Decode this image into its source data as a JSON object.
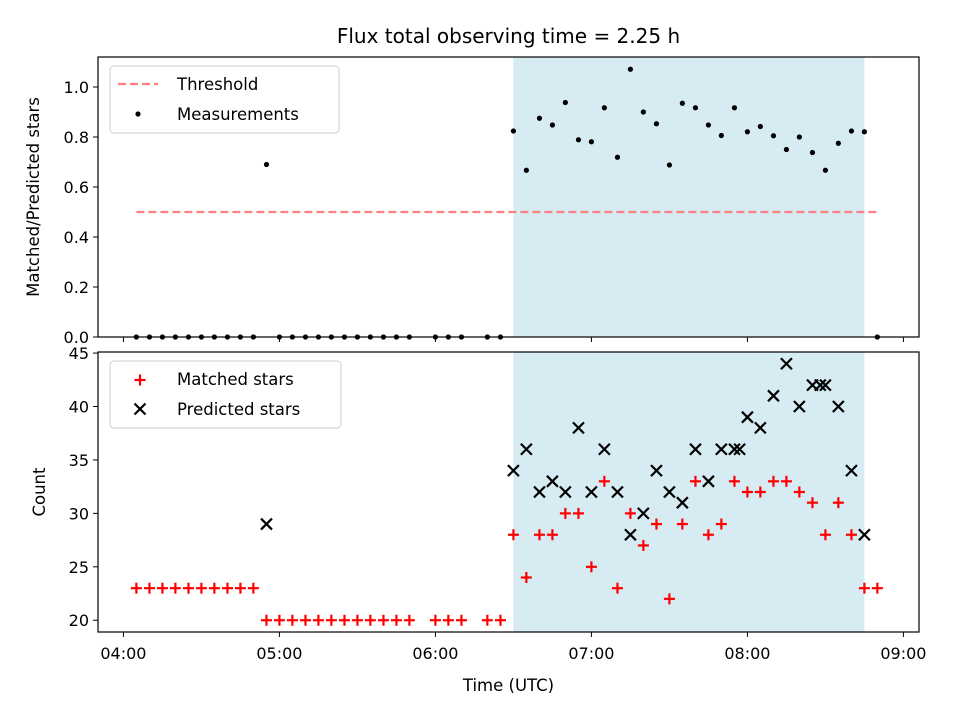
{
  "figure": {
    "title": "Flux total observing time = 2.25 h",
    "xlabel": "Time (UTC)",
    "x_ticks": [
      "04:00",
      "05:00",
      "06:00",
      "07:00",
      "08:00",
      "09:00"
    ],
    "x_tick_values_hours": [
      4,
      5,
      6,
      7,
      8,
      9
    ],
    "xlim_hours": [
      3.837,
      9.1
    ],
    "shaded_span_hours": [
      6.5,
      8.75
    ],
    "shade_color": "#add8e6"
  },
  "chart_data": [
    {
      "type": "scatter",
      "panel": "top",
      "ylabel": "Matched/Predicted stars",
      "ylim": [
        0,
        1.12
      ],
      "y_ticks": [
        0.0,
        0.2,
        0.4,
        0.6,
        0.8,
        1.0
      ],
      "y_tick_labels": [
        "0.0",
        "0.2",
        "0.4",
        "0.6",
        "0.8",
        "1.0"
      ],
      "legend_position": "upper-left",
      "threshold": {
        "name": "Threshold",
        "value": 0.5,
        "x_range_hours": [
          4.083,
          8.833
        ],
        "color": "#ff8080"
      },
      "series": [
        {
          "name": "Measurements",
          "color": "#000000",
          "x_hours": [
            4.083,
            4.167,
            4.25,
            4.333,
            4.417,
            4.5,
            4.583,
            4.667,
            4.75,
            4.833,
            4.917,
            5.0,
            5.083,
            5.167,
            5.25,
            5.333,
            5.417,
            5.5,
            5.583,
            5.667,
            5.75,
            5.833,
            6.0,
            6.083,
            6.167,
            6.333,
            6.417,
            6.5,
            6.583,
            6.667,
            6.75,
            6.833,
            6.917,
            7.0,
            7.083,
            7.167,
            7.25,
            7.333,
            7.417,
            7.5,
            7.583,
            7.667,
            7.75,
            7.833,
            7.917,
            8.0,
            8.083,
            8.167,
            8.25,
            8.333,
            8.417,
            8.5,
            8.583,
            8.667,
            8.75,
            8.833
          ],
          "y": [
            0,
            0,
            0,
            0,
            0,
            0,
            0,
            0,
            0,
            0,
            0.69,
            0,
            0,
            0,
            0,
            0,
            0,
            0,
            0,
            0,
            0,
            0,
            0,
            0,
            0,
            0,
            0,
            0.824,
            0.667,
            0.875,
            0.848,
            0.938,
            0.789,
            0.781,
            0.917,
            0.719,
            1.071,
            0.9,
            0.853,
            0.688,
            0.935,
            0.917,
            0.848,
            0.806,
            0.917,
            0.821,
            0.842,
            0.805,
            0.75,
            0.8,
            0.738,
            0.667,
            0.775,
            0.824,
            0.821,
            0
          ]
        }
      ]
    },
    {
      "type": "scatter",
      "panel": "bottom",
      "ylabel": "Count",
      "ylim": [
        18.9,
        45.1
      ],
      "y_ticks": [
        20,
        25,
        30,
        35,
        40,
        45
      ],
      "y_tick_labels": [
        "20",
        "25",
        "30",
        "35",
        "40",
        "45"
      ],
      "legend_position": "upper-left",
      "series": [
        {
          "name": "Matched stars",
          "marker": "plus",
          "color": "#ff0000",
          "x_hours": [
            4.083,
            4.167,
            4.25,
            4.333,
            4.417,
            4.5,
            4.583,
            4.667,
            4.75,
            4.833,
            4.917,
            5.0,
            5.083,
            5.167,
            5.25,
            5.333,
            5.417,
            5.5,
            5.583,
            5.667,
            5.75,
            5.833,
            6.0,
            6.083,
            6.167,
            6.333,
            6.417,
            6.5,
            6.583,
            6.667,
            6.75,
            6.833,
            6.917,
            7.0,
            7.083,
            7.167,
            7.25,
            7.333,
            7.417,
            7.5,
            7.583,
            7.667,
            7.75,
            7.833,
            7.917,
            8.0,
            8.083,
            8.167,
            8.25,
            8.333,
            8.417,
            8.5,
            8.583,
            8.667,
            8.75,
            8.833
          ],
          "y": [
            23,
            23,
            23,
            23,
            23,
            23,
            23,
            23,
            23,
            23,
            20,
            20,
            20,
            20,
            20,
            20,
            20,
            20,
            20,
            20,
            20,
            20,
            20,
            20,
            20,
            20,
            20,
            28,
            24,
            28,
            28,
            30,
            30,
            25,
            33,
            23,
            30,
            27,
            29,
            22,
            29,
            33,
            28,
            29,
            33,
            32,
            32,
            33,
            33,
            32,
            31,
            28,
            31,
            28,
            23,
            23
          ]
        },
        {
          "name": "Predicted stars",
          "marker": "x",
          "color": "#000000",
          "x_hours": [
            4.917,
            6.5,
            6.583,
            6.667,
            6.75,
            6.833,
            6.917,
            7.0,
            7.083,
            7.167,
            7.25,
            7.333,
            7.417,
            7.5,
            7.583,
            7.667,
            7.75,
            7.833,
            7.917,
            7.95,
            8.0,
            8.083,
            8.167,
            8.25,
            8.333,
            8.417,
            8.467,
            8.5,
            8.583,
            8.667,
            8.75
          ],
          "y": [
            29,
            34,
            36,
            32,
            33,
            32,
            38,
            32,
            36,
            32,
            28,
            30,
            34,
            32,
            31,
            36,
            33,
            36,
            36,
            36,
            39,
            38,
            41,
            44,
            40,
            42,
            42,
            42,
            40,
            34,
            28
          ]
        }
      ]
    }
  ]
}
